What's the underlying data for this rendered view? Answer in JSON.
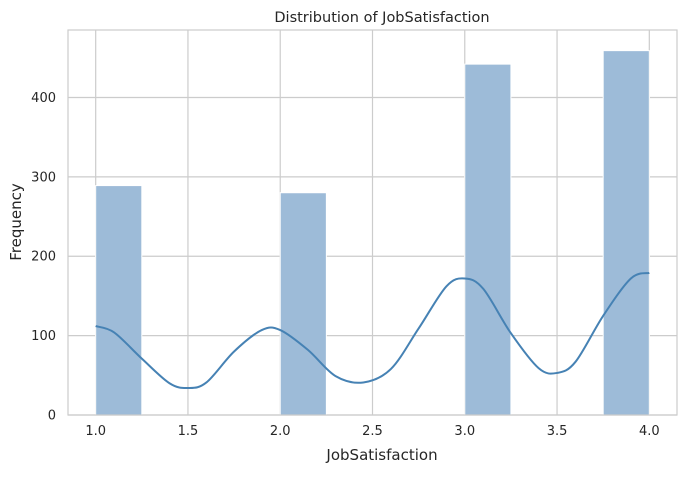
{
  "chart_data": {
    "type": "histogram",
    "title": "Distribution of JobSatisfaction",
    "xlabel": "JobSatisfaction",
    "ylabel": "Frequency",
    "xlim": [
      0.85,
      4.15
    ],
    "ylim": [
      0,
      485
    ],
    "xticks": [
      "1.0",
      "1.5",
      "2.0",
      "2.5",
      "3.0",
      "3.5",
      "4.0"
    ],
    "yticks": [
      "0",
      "100",
      "200",
      "300",
      "400"
    ],
    "grid": true,
    "colors": {
      "bar": "#9dbbd8",
      "bar_edge": "#ffffff",
      "kde": "#4682b4",
      "grid": "#cccccc",
      "spine": "#cccccc"
    },
    "bins": [
      {
        "x0": 1.0,
        "x1": 1.25,
        "value": 289
      },
      {
        "x0": 1.25,
        "x1": 1.5,
        "value": 0
      },
      {
        "x0": 1.5,
        "x1": 1.75,
        "value": 0
      },
      {
        "x0": 1.75,
        "x1": 2.0,
        "value": 0
      },
      {
        "x0": 2.0,
        "x1": 2.25,
        "value": 280
      },
      {
        "x0": 2.25,
        "x1": 2.5,
        "value": 0
      },
      {
        "x0": 2.5,
        "x1": 2.75,
        "value": 0
      },
      {
        "x0": 2.75,
        "x1": 3.0,
        "value": 0
      },
      {
        "x0": 3.0,
        "x1": 3.25,
        "value": 442
      },
      {
        "x0": 3.25,
        "x1": 3.5,
        "value": 0
      },
      {
        "x0": 3.5,
        "x1": 3.75,
        "value": 0
      },
      {
        "x0": 3.75,
        "x1": 4.0,
        "value": 459
      }
    ],
    "kde": {
      "x": [
        1.0,
        1.1,
        1.25,
        1.4,
        1.5,
        1.6,
        1.75,
        1.9,
        2.0,
        2.15,
        2.3,
        2.45,
        2.6,
        2.75,
        2.9,
        3.0,
        3.1,
        3.25,
        3.4,
        3.5,
        3.6,
        3.75,
        3.9,
        4.0
      ],
      "y": [
        112,
        104,
        71,
        40,
        34,
        41,
        80,
        107,
        107,
        82,
        49,
        41,
        58,
        109,
        162,
        172,
        159,
        103,
        59,
        53,
        67,
        125,
        172,
        179
      ]
    }
  }
}
